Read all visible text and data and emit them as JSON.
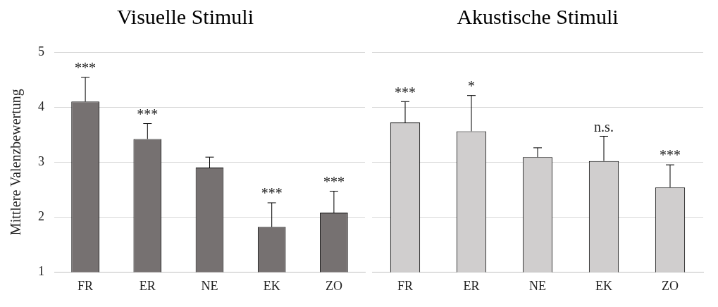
{
  "chart_data": [
    {
      "type": "bar",
      "title": "Visuelle Stimuli",
      "ylabel": "Mittlere Valenzbewertung",
      "categories": [
        "FR",
        "ER",
        "NE",
        "EK",
        "ZO"
      ],
      "values": [
        4.1,
        3.42,
        2.9,
        1.82,
        2.08
      ],
      "color": "#767171",
      "errors": [
        [
          4.1,
          4.54
        ],
        [
          3.42,
          3.7
        ],
        [
          2.9,
          3.09
        ],
        [
          1.82,
          2.26
        ],
        [
          2.08,
          2.47
        ]
      ],
      "ylim": [
        1,
        5
      ],
      "yticks": [
        1,
        2,
        3,
        4,
        5
      ],
      "grid": "y",
      "annotations": [
        {
          "text": "***",
          "x": "FR",
          "y": 4.54
        },
        {
          "text": "***",
          "x": "ER",
          "y": 3.7
        },
        {
          "text": "***",
          "x": "EK",
          "y": 2.26
        },
        {
          "text": "***",
          "x": "ZO",
          "y": 2.47
        }
      ]
    },
    {
      "type": "bar",
      "title": "Akustische Stimuli",
      "categories": [
        "FR",
        "ER",
        "NE",
        "EK",
        "ZO"
      ],
      "values": [
        3.72,
        3.56,
        3.09,
        3.02,
        2.54
      ],
      "color": "#d0cece",
      "errors": [
        [
          3.72,
          4.1
        ],
        [
          3.56,
          4.21
        ],
        [
          3.09,
          3.26
        ],
        [
          3.02,
          3.47
        ],
        [
          2.54,
          2.95
        ]
      ],
      "ylim": [
        1,
        5
      ],
      "yticks": [
        1,
        2,
        3,
        4,
        5
      ],
      "grid": "y",
      "tick_labels": "x",
      "annotations": [
        {
          "text": "***",
          "x": "FR",
          "y": 4.1
        },
        {
          "text": "*",
          "x": "ER",
          "y": 4.21
        },
        {
          "text": "n.s.",
          "x": "EK",
          "y": 3.47
        },
        {
          "text": "***",
          "x": "ZO",
          "y": 2.95
        }
      ]
    }
  ]
}
